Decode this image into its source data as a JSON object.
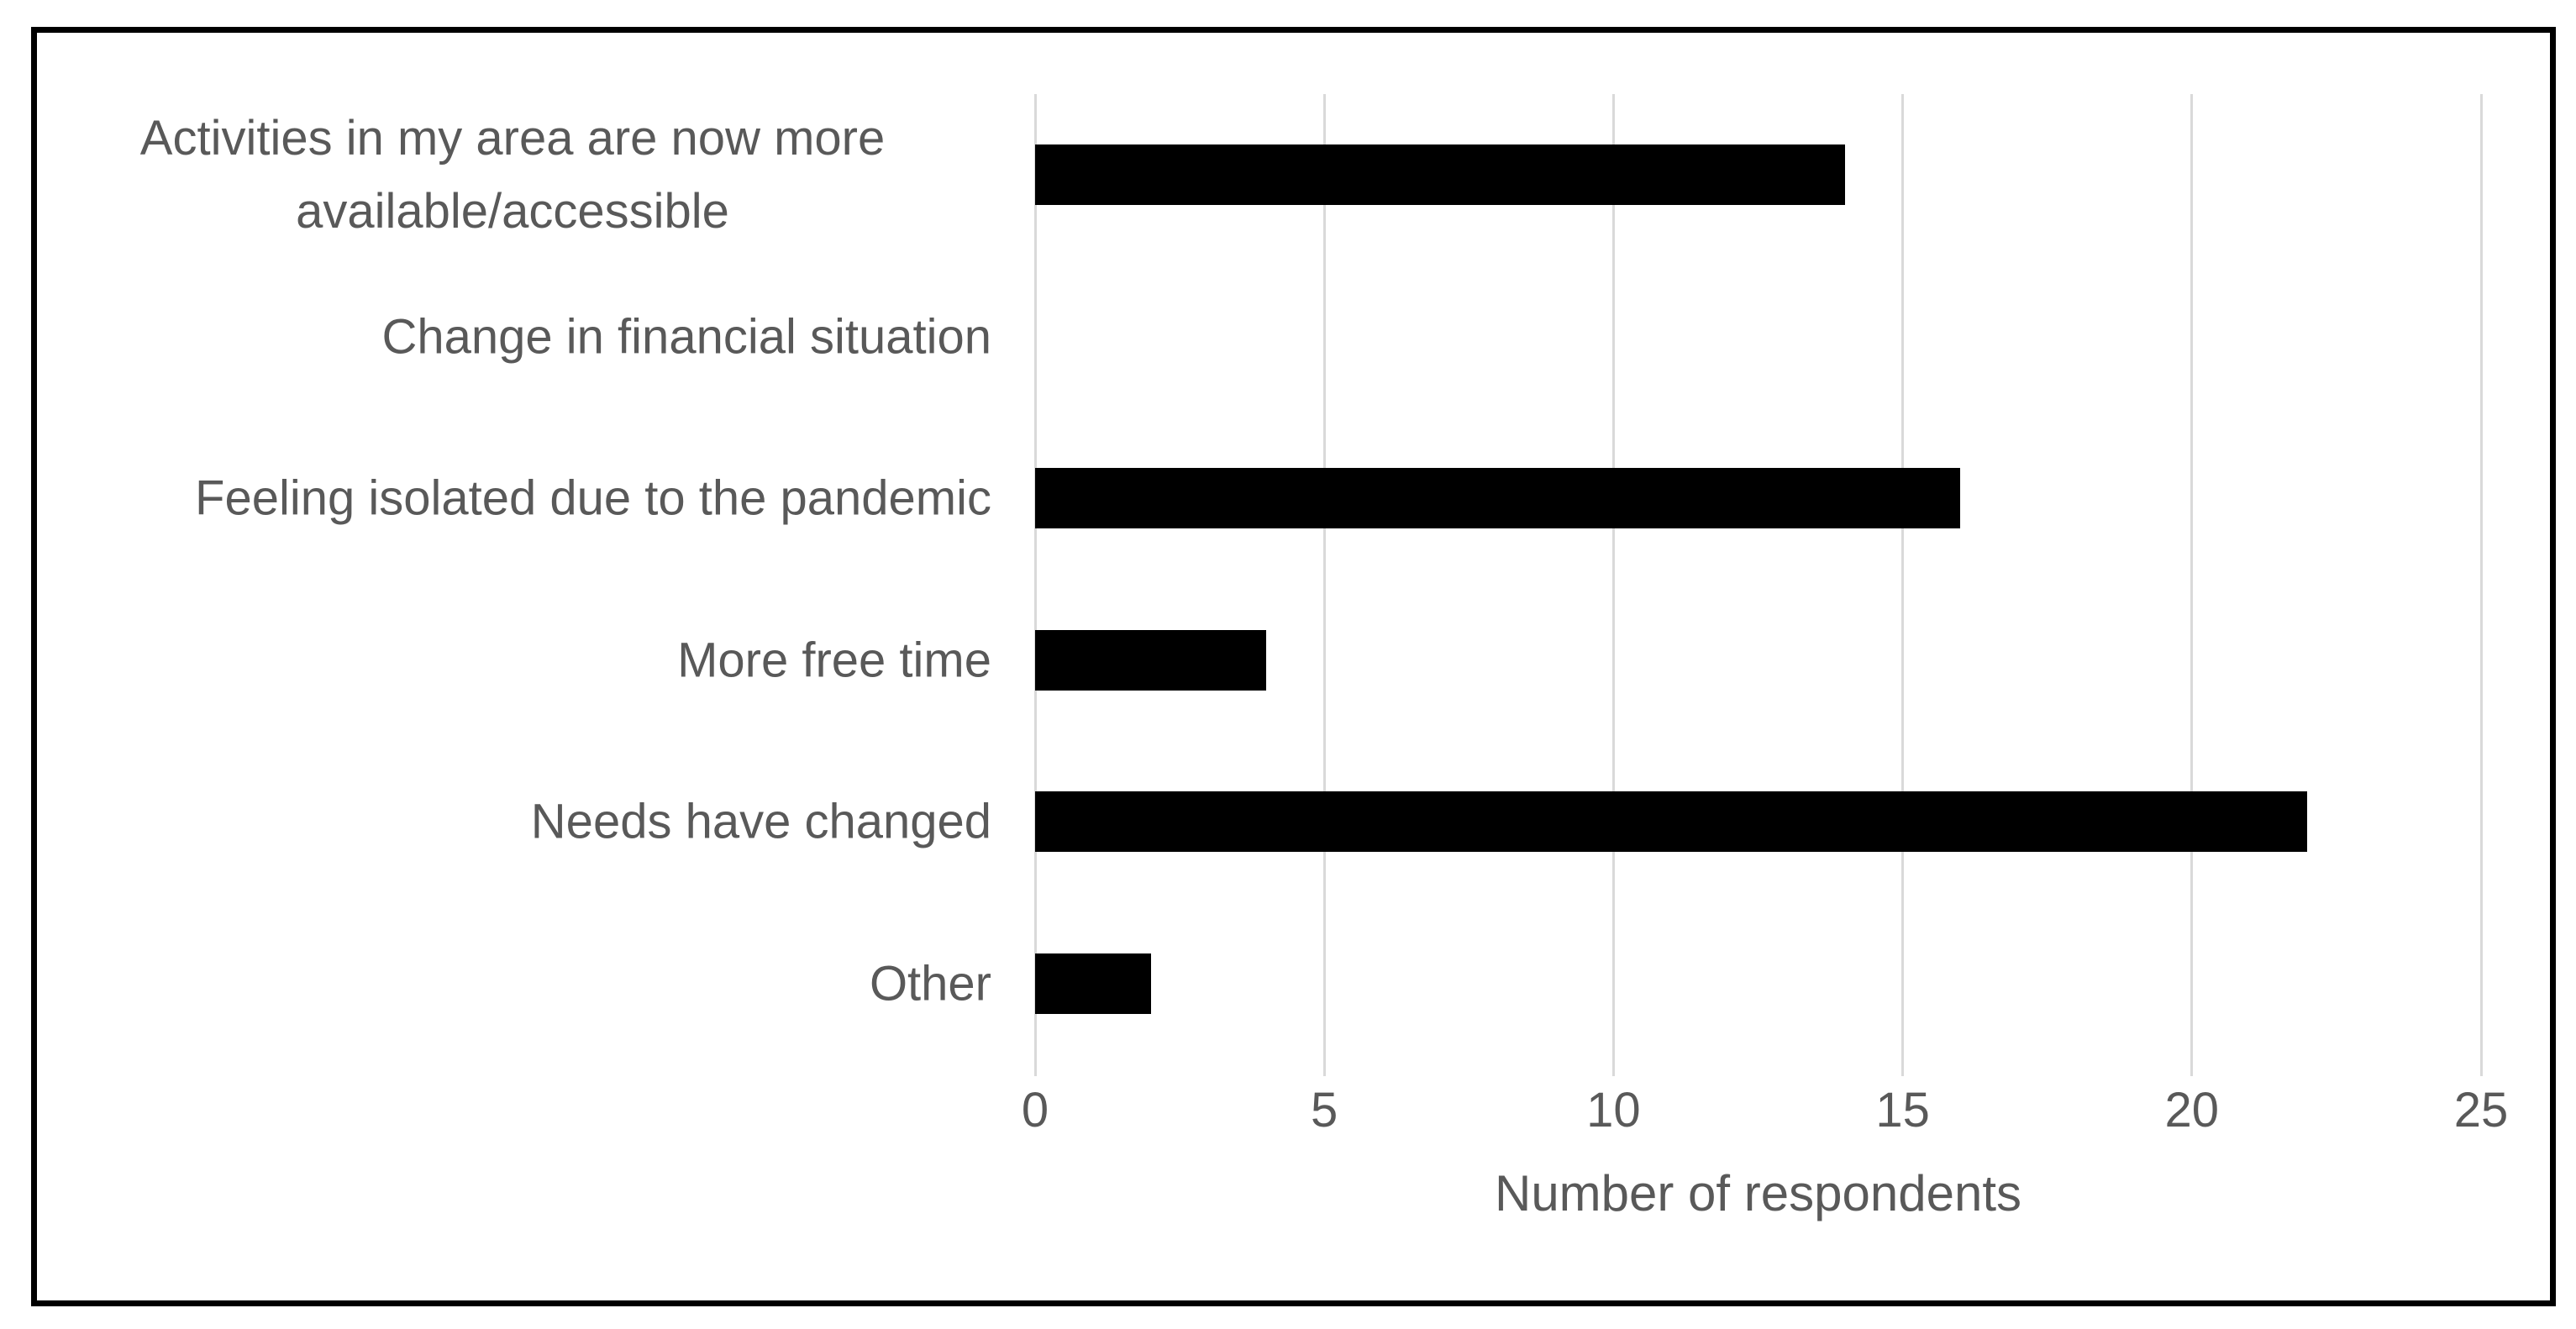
{
  "chart_data": {
    "type": "bar",
    "orientation": "horizontal",
    "title": "",
    "categories": [
      "Activities in my area are now more available/accessible",
      "Change in financial situation",
      "Feeling isolated due to the pandemic",
      "More free time",
      "Needs have changed",
      "Other"
    ],
    "values": [
      14,
      0,
      16,
      4,
      22,
      2
    ],
    "xlabel": "Number of respondents",
    "ylabel": "",
    "xticks": [
      0,
      5,
      10,
      15,
      20,
      25
    ],
    "xlim": [
      0,
      25
    ],
    "grid": true,
    "legend": false,
    "colors": {
      "bar": "#000000",
      "gridline": "#D9D9D9",
      "text": "#595959",
      "frame_border": "#000000",
      "background": "#FFFFFF"
    }
  }
}
